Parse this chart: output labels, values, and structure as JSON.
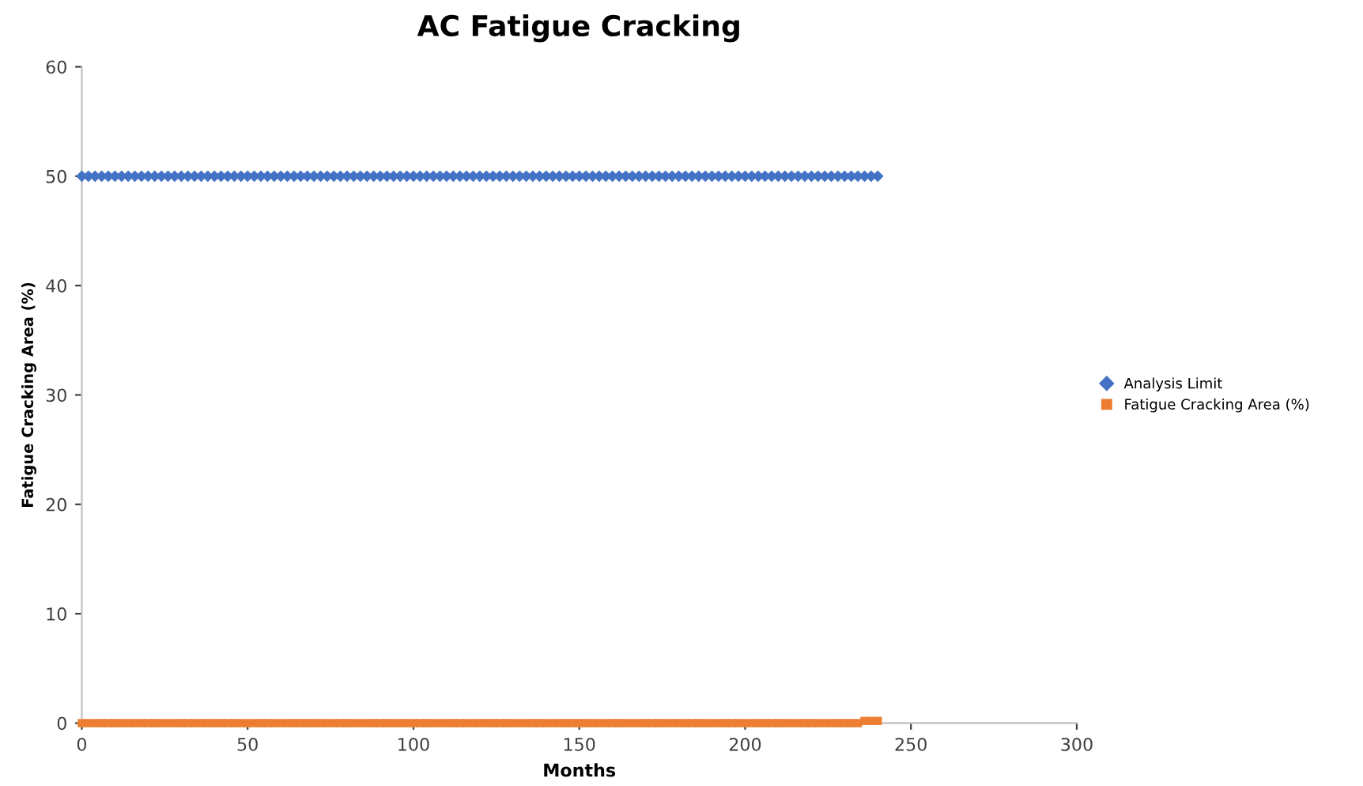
{
  "chart_data": {
    "type": "scatter",
    "title": "AC Fatigue Cracking",
    "xlabel": "Months",
    "ylabel": "Fatigue Cracking Area (%)",
    "xlim": [
      0,
      300
    ],
    "xticks": [
      0,
      50,
      100,
      150,
      200,
      250,
      300
    ],
    "ylim": [
      0,
      60
    ],
    "yticks": [
      0,
      10,
      20,
      30,
      40,
      50,
      60
    ],
    "grid": false,
    "legend": "right",
    "series": [
      {
        "name": "Analysis Limit",
        "color": "#4472c4",
        "marker": "diamond",
        "x": [
          0,
          2,
          4,
          6,
          8,
          10,
          12,
          14,
          16,
          18,
          20,
          22,
          24,
          26,
          28,
          30,
          32,
          34,
          36,
          38,
          40,
          42,
          44,
          46,
          48,
          50,
          52,
          54,
          56,
          58,
          60,
          62,
          64,
          66,
          68,
          70,
          72,
          74,
          76,
          78,
          80,
          82,
          84,
          86,
          88,
          90,
          92,
          94,
          96,
          98,
          100,
          102,
          104,
          106,
          108,
          110,
          112,
          114,
          116,
          118,
          120,
          122,
          124,
          126,
          128,
          130,
          132,
          134,
          136,
          138,
          140,
          142,
          144,
          146,
          148,
          150,
          152,
          154,
          156,
          158,
          160,
          162,
          164,
          166,
          168,
          170,
          172,
          174,
          176,
          178,
          180,
          182,
          184,
          186,
          188,
          190,
          192,
          194,
          196,
          198,
          200,
          202,
          204,
          206,
          208,
          210,
          212,
          214,
          216,
          218,
          220,
          222,
          224,
          226,
          228,
          230,
          232,
          234,
          236,
          238,
          240
        ],
        "values": [
          50,
          50,
          50,
          50,
          50,
          50,
          50,
          50,
          50,
          50,
          50,
          50,
          50,
          50,
          50,
          50,
          50,
          50,
          50,
          50,
          50,
          50,
          50,
          50,
          50,
          50,
          50,
          50,
          50,
          50,
          50,
          50,
          50,
          50,
          50,
          50,
          50,
          50,
          50,
          50,
          50,
          50,
          50,
          50,
          50,
          50,
          50,
          50,
          50,
          50,
          50,
          50,
          50,
          50,
          50,
          50,
          50,
          50,
          50,
          50,
          50,
          50,
          50,
          50,
          50,
          50,
          50,
          50,
          50,
          50,
          50,
          50,
          50,
          50,
          50,
          50,
          50,
          50,
          50,
          50,
          50,
          50,
          50,
          50,
          50,
          50,
          50,
          50,
          50,
          50,
          50,
          50,
          50,
          50,
          50,
          50,
          50,
          50,
          50,
          50,
          50,
          50,
          50,
          50,
          50,
          50,
          50,
          50,
          50,
          50,
          50,
          50,
          50,
          50,
          50,
          50,
          50,
          50,
          50,
          50,
          50
        ]
      },
      {
        "name": "Fatigue Cracking Area (%)",
        "color": "#ed7d31",
        "marker": "square",
        "x": [
          0,
          2,
          4,
          6,
          8,
          10,
          12,
          14,
          16,
          18,
          20,
          22,
          24,
          26,
          28,
          30,
          32,
          34,
          36,
          38,
          40,
          42,
          44,
          46,
          48,
          50,
          52,
          54,
          56,
          58,
          60,
          62,
          64,
          66,
          68,
          70,
          72,
          74,
          76,
          78,
          80,
          82,
          84,
          86,
          88,
          90,
          92,
          94,
          96,
          98,
          100,
          102,
          104,
          106,
          108,
          110,
          112,
          114,
          116,
          118,
          120,
          122,
          124,
          126,
          128,
          130,
          132,
          134,
          136,
          138,
          140,
          142,
          144,
          146,
          148,
          150,
          152,
          154,
          156,
          158,
          160,
          162,
          164,
          166,
          168,
          170,
          172,
          174,
          176,
          178,
          180,
          182,
          184,
          186,
          188,
          190,
          192,
          194,
          196,
          198,
          200,
          202,
          204,
          206,
          208,
          210,
          212,
          214,
          216,
          218,
          220,
          222,
          224,
          226,
          228,
          230,
          232,
          234,
          236,
          238,
          240
        ],
        "values": [
          0,
          0,
          0,
          0,
          0,
          0,
          0,
          0,
          0,
          0,
          0,
          0,
          0,
          0,
          0,
          0,
          0,
          0,
          0,
          0,
          0,
          0,
          0,
          0,
          0,
          0,
          0,
          0,
          0,
          0,
          0,
          0,
          0,
          0,
          0,
          0,
          0,
          0,
          0,
          0,
          0,
          0,
          0,
          0,
          0,
          0,
          0,
          0,
          0,
          0,
          0,
          0,
          0,
          0,
          0,
          0,
          0,
          0,
          0,
          0,
          0,
          0,
          0,
          0,
          0,
          0,
          0,
          0,
          0,
          0,
          0,
          0,
          0,
          0,
          0,
          0,
          0,
          0,
          0,
          0,
          0,
          0,
          0,
          0,
          0,
          0,
          0,
          0,
          0,
          0,
          0,
          0,
          0,
          0,
          0,
          0,
          0,
          0,
          0,
          0,
          0,
          0,
          0,
          0,
          0,
          0,
          0,
          0,
          0,
          0,
          0,
          0,
          0,
          0,
          0,
          0,
          0,
          0,
          0.2,
          0.2,
          0.2
        ]
      }
    ]
  }
}
